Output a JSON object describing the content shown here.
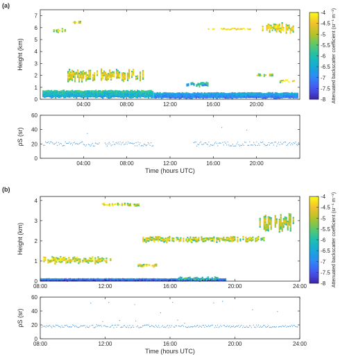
{
  "figure": {
    "panel_labels": [
      "(a)",
      "(b)"
    ],
    "colormap": [
      "#3e26a8",
      "#4554f0",
      "#2e87f7",
      "#14a9d9",
      "#1cbeb0",
      "#5ac86c",
      "#b4c326",
      "#f2c22c",
      "#f9fb15"
    ]
  },
  "chart_data": [
    {
      "type": "heatmap",
      "panel": "(a)",
      "ylabel": "Height (km)",
      "xlim": [
        0,
        24
      ],
      "xticks": [
        "04:00",
        "08:00",
        "12:00",
        "16:00",
        "20:00"
      ],
      "ylim": [
        0,
        7.5
      ],
      "yticks": [
        "0",
        "1",
        "2",
        "3",
        "4",
        "5",
        "6",
        "7"
      ],
      "colorbar": {
        "label": "Attenuated backscatter coefficient (sr⁻¹ m⁻¹)",
        "range": [
          -8,
          -4
        ],
        "ticks": [
          "-4",
          "-4.5",
          "-5",
          "-5.5",
          "-6",
          "-6.5",
          "-7",
          "-7.5",
          "-8"
        ]
      },
      "features": [
        {
          "kind": "boundary_layer",
          "x_range": [
            0.2,
            10.5
          ],
          "height_km": [
            0.1,
            0.8
          ],
          "log_backscatter": -6.2
        },
        {
          "kind": "boundary_layer",
          "x_range": [
            10.5,
            23.9
          ],
          "height_km": [
            0.05,
            0.6
          ],
          "log_backscatter": -6.8
        },
        {
          "kind": "cloud",
          "x_range": [
            1.2,
            2.4
          ],
          "height_km": [
            5.6,
            6.0
          ],
          "log_backscatter": -4.3
        },
        {
          "kind": "cloud",
          "x_range": [
            3.0,
            4.0
          ],
          "height_km": [
            6.3,
            6.6
          ],
          "log_backscatter": -4.3
        },
        {
          "kind": "cloud",
          "x_range": [
            2.5,
            9.5
          ],
          "height_km": [
            1.4,
            2.6
          ],
          "log_backscatter": -4.5
        },
        {
          "kind": "cloud",
          "x_range": [
            13.5,
            15.5
          ],
          "height_km": [
            1.0,
            1.5
          ],
          "log_backscatter": -5.6
        },
        {
          "kind": "cloud",
          "x_range": [
            15.5,
            19.5
          ],
          "height_km": [
            5.8,
            6.0
          ],
          "log_backscatter": -4.3
        },
        {
          "kind": "cloud",
          "x_range": [
            20.5,
            23.5
          ],
          "height_km": [
            5.5,
            6.5
          ],
          "log_backscatter": -4.3
        },
        {
          "kind": "cloud",
          "x_range": [
            20.0,
            21.5
          ],
          "height_km": [
            1.9,
            2.2
          ],
          "log_backscatter": -4.3
        },
        {
          "kind": "cloud",
          "x_range": [
            22.0,
            23.5
          ],
          "height_km": [
            1.4,
            1.7
          ],
          "log_backscatter": -4.3
        }
      ]
    },
    {
      "type": "scatter",
      "panel": "(a)",
      "ylabel": "ρS (sr)",
      "xlabel": "Time (hours UTC)",
      "xlim": [
        0,
        24
      ],
      "xticks": [
        "04:00",
        "08:00",
        "12:00",
        "16:00",
        "20:00"
      ],
      "ylim": [
        0,
        60
      ],
      "yticks": [
        "0",
        "20",
        "40",
        "60"
      ],
      "series": [
        {
          "segments": [
            [
              0.3,
              5.5
            ],
            [
              6.0,
              10.5
            ],
            [
              14.2,
              23.9
            ]
          ],
          "typical_value": 20,
          "spread": 3,
          "max_value": 45
        }
      ]
    },
    {
      "type": "heatmap",
      "panel": "(b)",
      "ylabel": "Height (km)",
      "xlim": [
        8,
        24
      ],
      "xticks": [
        "08:00",
        "12:00",
        "16:00",
        "20:00",
        "24:00"
      ],
      "ylim": [
        0,
        4.2
      ],
      "yticks": [
        "0",
        "1",
        "2",
        "3",
        "4"
      ],
      "colorbar": {
        "label": "Attenuated backscatter coefficient (sr⁻¹ m⁻¹)",
        "range": [
          -8,
          -4
        ],
        "ticks": [
          "-4",
          "-4.5",
          "-5",
          "-5.5",
          "-6",
          "-6.5",
          "-7",
          "-7.5",
          "-8"
        ]
      },
      "features": [
        {
          "kind": "cloud",
          "x_range": [
            8.1,
            12.4
          ],
          "height_km": [
            0.85,
            1.25
          ],
          "log_backscatter": -4.3
        },
        {
          "kind": "cloud",
          "x_range": [
            11.8,
            14.2
          ],
          "height_km": [
            3.7,
            3.9
          ],
          "log_backscatter": -4.3
        },
        {
          "kind": "cloud",
          "x_range": [
            14.3,
            21.8
          ],
          "height_km": [
            1.9,
            2.25
          ],
          "log_backscatter": -4.4
        },
        {
          "kind": "cloud",
          "x_range": [
            21.5,
            23.6
          ],
          "height_km": [
            2.4,
            3.4
          ],
          "log_backscatter": -4.8
        },
        {
          "kind": "cloud",
          "x_range": [
            14.0,
            15.2
          ],
          "height_km": [
            0.7,
            0.9
          ],
          "log_backscatter": -4.4
        },
        {
          "kind": "boundary_layer",
          "x_range": [
            8.0,
            19.5
          ],
          "height_km": [
            0.0,
            0.15
          ],
          "log_backscatter": -7.3
        },
        {
          "kind": "cloud",
          "x_range": [
            16.5,
            19.0
          ],
          "height_km": [
            0.0,
            0.25
          ],
          "log_backscatter": -5.5
        }
      ]
    },
    {
      "type": "scatter",
      "panel": "(b)",
      "ylabel": "ρS (sr)",
      "xlabel": "Time (hours UTC)",
      "xlim": [
        8,
        24
      ],
      "xticks": [
        "08:00",
        "12:00",
        "16:00",
        "20:00",
        "24:00"
      ],
      "ylim": [
        0,
        60
      ],
      "yticks": [
        "0",
        "20",
        "40",
        "60"
      ],
      "series": [
        {
          "segments": [
            [
              8.1,
              23.9
            ]
          ],
          "typical_value": 18,
          "spread": 2,
          "max_value": 55
        }
      ]
    }
  ]
}
